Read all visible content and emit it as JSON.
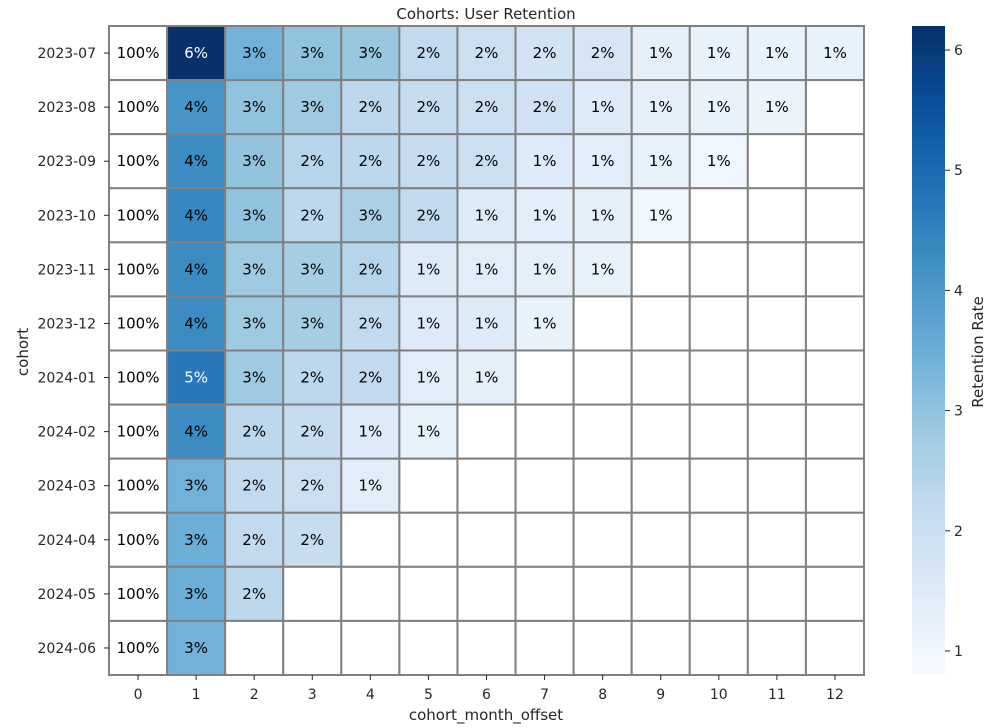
{
  "chart_data": {
    "type": "heatmap",
    "title": "Cohorts: User Retention",
    "xlabel": "cohort_month_offset",
    "ylabel": "cohort",
    "x": [
      0,
      1,
      2,
      3,
      4,
      5,
      6,
      7,
      8,
      9,
      10,
      11,
      12
    ],
    "y": [
      "2023-07",
      "2023-08",
      "2023-09",
      "2023-10",
      "2023-11",
      "2023-12",
      "2024-01",
      "2024-02",
      "2024-03",
      "2024-04",
      "2024-05",
      "2024-06"
    ],
    "values": [
      [
        100,
        6.2,
        3.4,
        3.0,
        2.9,
        2.2,
        2.0,
        1.8,
        1.7,
        1.3,
        1.2,
        1.2,
        1.2
      ],
      [
        100,
        4.1,
        3.0,
        2.8,
        2.3,
        2.1,
        2.0,
        1.9,
        1.5,
        1.3,
        1.2,
        1.1,
        null
      ],
      [
        100,
        4.3,
        3.0,
        2.4,
        2.3,
        2.1,
        2.0,
        1.5,
        1.4,
        1.2,
        1.0,
        null,
        null
      ],
      [
        100,
        4.4,
        3.0,
        2.3,
        2.6,
        2.2,
        1.5,
        1.4,
        1.3,
        1.0,
        null,
        null,
        null
      ],
      [
        100,
        4.3,
        2.8,
        2.7,
        2.4,
        1.5,
        1.4,
        1.3,
        1.2,
        null,
        null,
        null,
        null
      ],
      [
        100,
        4.3,
        2.8,
        2.7,
        2.2,
        1.5,
        1.5,
        1.2,
        null,
        null,
        null,
        null,
        null
      ],
      [
        100,
        4.7,
        2.8,
        2.3,
        2.2,
        1.4,
        1.3,
        null,
        null,
        null,
        null,
        null,
        null
      ],
      [
        100,
        4.3,
        2.3,
        2.1,
        1.5,
        1.2,
        null,
        null,
        null,
        null,
        null,
        null,
        null
      ],
      [
        100,
        3.4,
        2.2,
        2.0,
        1.4,
        null,
        null,
        null,
        null,
        null,
        null,
        null,
        null
      ],
      [
        100,
        3.5,
        2.2,
        2.1,
        null,
        null,
        null,
        null,
        null,
        null,
        null,
        null,
        null
      ],
      [
        100,
        3.5,
        2.3,
        null,
        null,
        null,
        null,
        null,
        null,
        null,
        null,
        null,
        null
      ],
      [
        100,
        3.4,
        null,
        null,
        null,
        null,
        null,
        null,
        null,
        null,
        null,
        null,
        null
      ]
    ],
    "cell_labels": [
      [
        "100%",
        "6%",
        "3%",
        "3%",
        "3%",
        "2%",
        "2%",
        "2%",
        "2%",
        "1%",
        "1%",
        "1%",
        "1%"
      ],
      [
        "100%",
        "4%",
        "3%",
        "3%",
        "2%",
        "2%",
        "2%",
        "2%",
        "1%",
        "1%",
        "1%",
        "1%",
        ""
      ],
      [
        "100%",
        "4%",
        "3%",
        "2%",
        "2%",
        "2%",
        "2%",
        "1%",
        "1%",
        "1%",
        "1%",
        "",
        ""
      ],
      [
        "100%",
        "4%",
        "3%",
        "2%",
        "3%",
        "2%",
        "1%",
        "1%",
        "1%",
        "1%",
        "",
        "",
        ""
      ],
      [
        "100%",
        "4%",
        "3%",
        "3%",
        "2%",
        "1%",
        "1%",
        "1%",
        "1%",
        "",
        "",
        "",
        ""
      ],
      [
        "100%",
        "4%",
        "3%",
        "3%",
        "2%",
        "1%",
        "1%",
        "1%",
        "",
        "",
        "",
        "",
        ""
      ],
      [
        "100%",
        "5%",
        "3%",
        "2%",
        "2%",
        "1%",
        "1%",
        "",
        "",
        "",
        "",
        "",
        ""
      ],
      [
        "100%",
        "4%",
        "2%",
        "2%",
        "1%",
        "1%",
        "",
        "",
        "",
        "",
        "",
        "",
        ""
      ],
      [
        "100%",
        "3%",
        "2%",
        "2%",
        "1%",
        "",
        "",
        "",
        "",
        "",
        "",
        "",
        ""
      ],
      [
        "100%",
        "3%",
        "2%",
        "2%",
        "",
        "",
        "",
        "",
        "",
        "",
        "",
        "",
        ""
      ],
      [
        "100%",
        "3%",
        "2%",
        "",
        "",
        "",
        "",
        "",
        "",
        "",
        "",
        "",
        ""
      ],
      [
        "100%",
        "3%",
        "",
        "",
        "",
        "",
        "",
        "",
        "",
        "",
        "",
        "",
        ""
      ]
    ],
    "colormap": "Blues",
    "color_range": [
      0.8,
      6.2
    ],
    "colorbar": {
      "label": "Retention Rate",
      "ticks": [
        1,
        2,
        3,
        4,
        5,
        6
      ]
    },
    "grid": "gray cell borders",
    "legend": "right"
  }
}
